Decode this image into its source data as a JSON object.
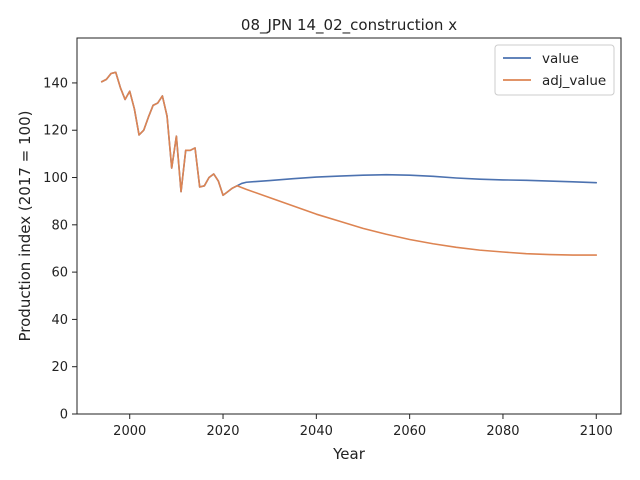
{
  "chart_data": {
    "type": "line",
    "title": "08_JPN 14_02_construction x",
    "xlabel": "Year",
    "ylabel": "Production index (2017 = 100)",
    "xlim": [
      1988.7,
      2105.3
    ],
    "ylim": [
      0,
      159
    ],
    "xticks": [
      2000,
      2020,
      2040,
      2060,
      2080,
      2100
    ],
    "yticks": [
      0,
      20,
      40,
      60,
      80,
      100,
      120,
      140
    ],
    "grid": false,
    "legend_position": "top-right",
    "series": [
      {
        "name": "value",
        "color": "#4c72b0",
        "points": [
          [
            1994,
            140.5
          ],
          [
            1995,
            141.5
          ],
          [
            1996,
            144
          ],
          [
            1997,
            144.5
          ],
          [
            1998,
            138
          ],
          [
            1999,
            133
          ],
          [
            2000,
            136.5
          ],
          [
            2001,
            129
          ],
          [
            2002,
            118
          ],
          [
            2003,
            120
          ],
          [
            2004,
            125.5
          ],
          [
            2005,
            130.5
          ],
          [
            2006,
            131.5
          ],
          [
            2007,
            134.5
          ],
          [
            2008,
            126
          ],
          [
            2009,
            104
          ],
          [
            2010,
            117.5
          ],
          [
            2011,
            94
          ],
          [
            2012,
            111.5
          ],
          [
            2013,
            111.5
          ],
          [
            2014,
            112.5
          ],
          [
            2015,
            96
          ],
          [
            2016,
            96.5
          ],
          [
            2017,
            100
          ],
          [
            2018,
            101.5
          ],
          [
            2019,
            98.5
          ],
          [
            2020,
            92.5
          ],
          [
            2021,
            94
          ],
          [
            2022,
            95.5
          ],
          [
            2023,
            96.5
          ],
          [
            2024,
            97.5
          ],
          [
            2025,
            98
          ],
          [
            2027,
            98.3
          ],
          [
            2030,
            98.7
          ],
          [
            2035,
            99.5
          ],
          [
            2040,
            100.2
          ],
          [
            2045,
            100.6
          ],
          [
            2050,
            101
          ],
          [
            2055,
            101.2
          ],
          [
            2060,
            101
          ],
          [
            2065,
            100.5
          ],
          [
            2070,
            99.8
          ],
          [
            2075,
            99.3
          ],
          [
            2080,
            99
          ],
          [
            2085,
            98.8
          ],
          [
            2090,
            98.5
          ],
          [
            2095,
            98.2
          ],
          [
            2100,
            97.8
          ]
        ]
      },
      {
        "name": "adj_value",
        "color": "#dd8452",
        "points": [
          [
            1994,
            140.5
          ],
          [
            1995,
            141.5
          ],
          [
            1996,
            144
          ],
          [
            1997,
            144.5
          ],
          [
            1998,
            138
          ],
          [
            1999,
            133
          ],
          [
            2000,
            136.5
          ],
          [
            2001,
            129
          ],
          [
            2002,
            118
          ],
          [
            2003,
            120
          ],
          [
            2004,
            125.5
          ],
          [
            2005,
            130.5
          ],
          [
            2006,
            131.5
          ],
          [
            2007,
            134.5
          ],
          [
            2008,
            126
          ],
          [
            2009,
            104
          ],
          [
            2010,
            117.5
          ],
          [
            2011,
            94
          ],
          [
            2012,
            111.5
          ],
          [
            2013,
            111.5
          ],
          [
            2014,
            112.5
          ],
          [
            2015,
            96
          ],
          [
            2016,
            96.5
          ],
          [
            2017,
            100
          ],
          [
            2018,
            101.5
          ],
          [
            2019,
            98.5
          ],
          [
            2020,
            92.5
          ],
          [
            2021,
            94
          ],
          [
            2022,
            95.5
          ],
          [
            2023,
            96.5
          ],
          [
            2025,
            95
          ],
          [
            2030,
            91.5
          ],
          [
            2035,
            88
          ],
          [
            2040,
            84.5
          ],
          [
            2045,
            81.5
          ],
          [
            2050,
            78.5
          ],
          [
            2055,
            76
          ],
          [
            2060,
            73.8
          ],
          [
            2065,
            72
          ],
          [
            2070,
            70.5
          ],
          [
            2075,
            69.3
          ],
          [
            2080,
            68.5
          ],
          [
            2085,
            67.8
          ],
          [
            2090,
            67.4
          ],
          [
            2095,
            67.2
          ],
          [
            2100,
            67.2
          ]
        ]
      }
    ]
  }
}
